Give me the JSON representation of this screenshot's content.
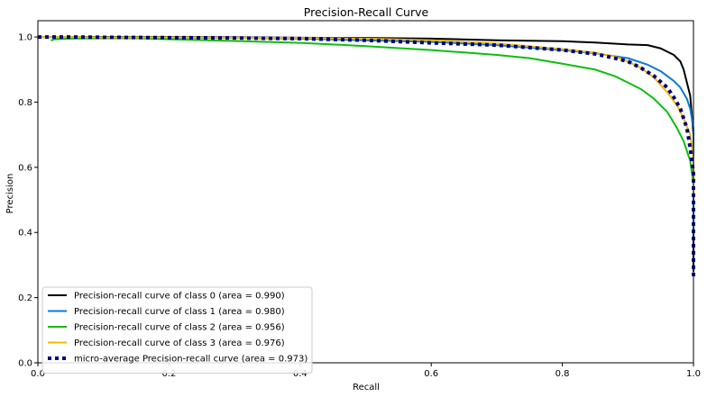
{
  "chart_data": {
    "type": "line",
    "title": "Precision-Recall Curve",
    "xlabel": "Recall",
    "ylabel": "Precision",
    "xlim": [
      0.0,
      1.0
    ],
    "ylim": [
      0.0,
      1.05
    ],
    "xticks": [
      0.0,
      0.2,
      0.4,
      0.6,
      0.8,
      1.0
    ],
    "xtick_labels": [
      "0.0",
      "0.2",
      "0.4",
      "0.6",
      "0.8",
      "1.0"
    ],
    "yticks": [
      0.0,
      0.2,
      0.4,
      0.6,
      0.8,
      1.0
    ],
    "ytick_labels": [
      "0.0",
      "0.2",
      "0.4",
      "0.6",
      "0.8",
      "1.0"
    ],
    "grid": false,
    "legend_position": "lower-left",
    "series": [
      {
        "name": "Precision-recall curve of class 0 (area = 0.990)",
        "color": "#000000",
        "style": "solid",
        "x": [
          0.0,
          0.05,
          0.1,
          0.2,
          0.3,
          0.4,
          0.5,
          0.6,
          0.7,
          0.8,
          0.85,
          0.9,
          0.93,
          0.95,
          0.97,
          0.98,
          0.985,
          0.99,
          0.995,
          1.0,
          1.0
        ],
        "y": [
          1.0,
          1.0,
          1.0,
          1.0,
          0.999,
          0.998,
          0.997,
          0.995,
          0.99,
          0.987,
          0.983,
          0.977,
          0.975,
          0.965,
          0.945,
          0.925,
          0.9,
          0.86,
          0.82,
          0.7,
          0.28
        ]
      },
      {
        "name": "Precision-recall curve of class 1 (area = 0.980)",
        "color": "#0a7bd1",
        "style": "solid",
        "x": [
          0.0,
          0.05,
          0.1,
          0.2,
          0.3,
          0.4,
          0.5,
          0.6,
          0.7,
          0.8,
          0.85,
          0.9,
          0.93,
          0.95,
          0.97,
          0.98,
          0.99,
          0.995,
          1.0,
          1.0
        ],
        "y": [
          1.0,
          1.0,
          0.999,
          0.998,
          0.997,
          0.995,
          0.99,
          0.985,
          0.975,
          0.96,
          0.95,
          0.935,
          0.915,
          0.895,
          0.865,
          0.845,
          0.81,
          0.78,
          0.72,
          0.4
        ]
      },
      {
        "name": "Precision-recall curve of class 2 (area = 0.956)",
        "color": "#0cbf0c",
        "style": "solid",
        "x": [
          0.02,
          0.025,
          0.05,
          0.1,
          0.15,
          0.2,
          0.3,
          0.4,
          0.5,
          0.6,
          0.7,
          0.75,
          0.8,
          0.85,
          0.88,
          0.9,
          0.92,
          0.94,
          0.96,
          0.975,
          0.985,
          0.995,
          1.0
        ],
        "y": [
          0.989,
          0.993,
          0.995,
          0.996,
          0.996,
          0.993,
          0.988,
          0.982,
          0.972,
          0.96,
          0.945,
          0.935,
          0.918,
          0.9,
          0.88,
          0.86,
          0.84,
          0.81,
          0.77,
          0.72,
          0.68,
          0.62,
          0.55
        ]
      },
      {
        "name": "Precision-recall curve of class 3 (area = 0.976)",
        "color": "#f5b800",
        "style": "solid",
        "x": [
          0.0,
          0.05,
          0.1,
          0.2,
          0.3,
          0.4,
          0.5,
          0.6,
          0.7,
          0.8,
          0.85,
          0.88,
          0.9,
          0.92,
          0.94,
          0.96,
          0.975,
          0.985,
          0.995,
          1.0,
          1.0
        ],
        "y": [
          1.0,
          1.0,
          0.999,
          0.999,
          0.998,
          0.997,
          0.995,
          0.99,
          0.98,
          0.963,
          0.952,
          0.94,
          0.925,
          0.905,
          0.875,
          0.83,
          0.79,
          0.75,
          0.7,
          0.63,
          0.52
        ]
      },
      {
        "name": "micro-average Precision-recall curve (area = 0.973)",
        "color": "#000080",
        "style": "dotted",
        "x": [
          0.0,
          0.05,
          0.1,
          0.2,
          0.3,
          0.4,
          0.5,
          0.6,
          0.7,
          0.8,
          0.85,
          0.88,
          0.9,
          0.92,
          0.94,
          0.96,
          0.97,
          0.98,
          0.99,
          0.995,
          1.0,
          1.0
        ],
        "y": [
          1.0,
          1.0,
          0.999,
          0.998,
          0.997,
          0.995,
          0.99,
          0.982,
          0.975,
          0.96,
          0.948,
          0.935,
          0.925,
          0.905,
          0.88,
          0.845,
          0.815,
          0.78,
          0.72,
          0.66,
          0.58,
          0.26
        ]
      }
    ]
  }
}
